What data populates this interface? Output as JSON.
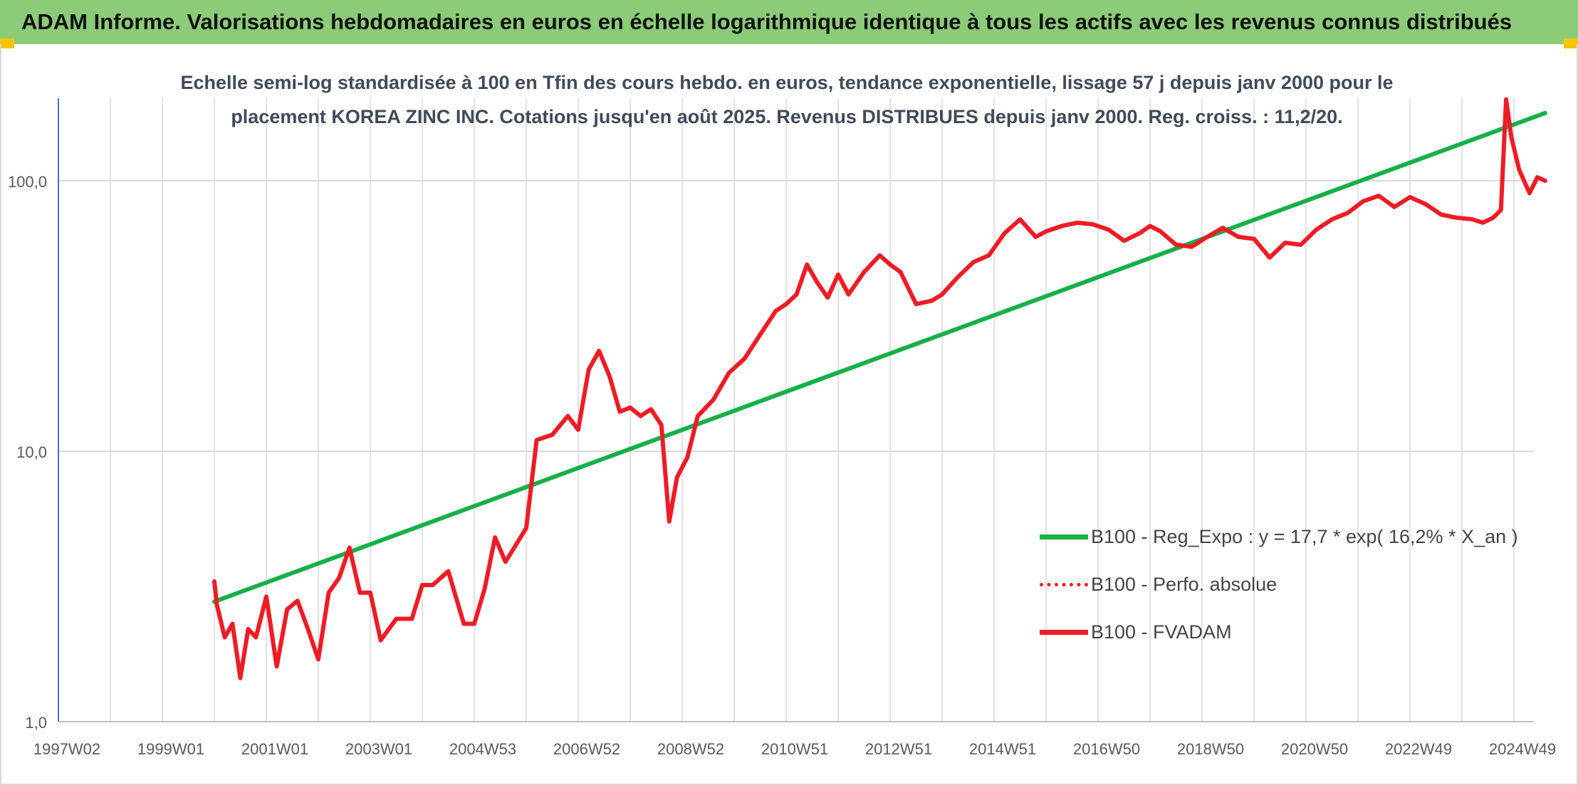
{
  "header": {
    "title": "ADAM Informe. Valorisations hebdomadaires en euros en échelle logarithmique identique à tous les actifs avec les revenus connus distribués"
  },
  "chart_data": {
    "type": "line",
    "title": "Echelle semi-log standardisée à 100 en Tfin des cours hebdo. en euros, tendance exponentielle, lissage 57 j depuis janv 2000 pour le placement KOREA ZINC INC. Cotations jusqu'en août 2025. Revenus DISTRIBUES depuis janv 2000. Reg. croiss. : 11,2/20.",
    "xlabel": "",
    "ylabel": "",
    "y_scale": "log",
    "ylim": [
      1,
      200
    ],
    "y_ticks": [
      "1,0",
      "10,0",
      "100,0"
    ],
    "x_tick_labels": [
      "1997W02",
      "1999W01",
      "2001W01",
      "2003W01",
      "2004W53",
      "2006W52",
      "2008W52",
      "2010W51",
      "2012W51",
      "2014W51",
      "2016W50",
      "2018W50",
      "2020W50",
      "2022W49",
      "2024W49"
    ],
    "grid": true,
    "legend_position": "bottom-right",
    "x_unit": "year",
    "series": [
      {
        "name": "B100 - Reg_Expo : y = 17,7 * exp( 16,2% *  X_an )",
        "color": "#16b04a",
        "style": "solid",
        "x": [
          2000.0,
          2025.6
        ],
        "y": [
          2.78,
          178
        ]
      },
      {
        "name": "B100 - Perfo. absolue",
        "color": "#ee1c24",
        "style": "dotted",
        "x": [],
        "y": []
      },
      {
        "name": "B100 - FVADAM",
        "color": "#ee1c24",
        "style": "solid",
        "x": [
          2000.0,
          2000.05,
          2000.2,
          2000.35,
          2000.5,
          2000.65,
          2000.8,
          2001.0,
          2001.2,
          2001.4,
          2001.6,
          2001.8,
          2002.0,
          2002.2,
          2002.4,
          2002.6,
          2002.8,
          2003.0,
          2003.2,
          2003.5,
          2003.8,
          2004.0,
          2004.2,
          2004.5,
          2004.8,
          2005.0,
          2005.2,
          2005.4,
          2005.6,
          2005.8,
          2006.0,
          2006.2,
          2006.5,
          2006.8,
          2007.0,
          2007.2,
          2007.4,
          2007.6,
          2007.8,
          2008.0,
          2008.2,
          2008.4,
          2008.6,
          2008.75,
          2008.9,
          2009.1,
          2009.3,
          2009.6,
          2009.9,
          2010.2,
          2010.5,
          2010.8,
          2011.0,
          2011.2,
          2011.4,
          2011.6,
          2011.8,
          2012.0,
          2012.2,
          2012.5,
          2012.8,
          2013.0,
          2013.2,
          2013.5,
          2013.8,
          2014.0,
          2014.3,
          2014.6,
          2014.9,
          2015.2,
          2015.5,
          2015.8,
          2016.0,
          2016.3,
          2016.6,
          2016.9,
          2017.2,
          2017.5,
          2017.8,
          2018.0,
          2018.2,
          2018.5,
          2018.8,
          2019.1,
          2019.4,
          2019.7,
          2020.0,
          2020.3,
          2020.6,
          2020.9,
          2021.2,
          2021.5,
          2021.8,
          2022.1,
          2022.4,
          2022.7,
          2023.0,
          2023.3,
          2023.6,
          2023.9,
          2024.2,
          2024.4,
          2024.6,
          2024.75,
          2024.85,
          2024.95,
          2025.1,
          2025.3,
          2025.45,
          2025.6
        ],
        "y": [
          3.3,
          2.7,
          2.05,
          2.3,
          1.45,
          2.2,
          2.05,
          2.9,
          1.6,
          2.6,
          2.8,
          2.2,
          1.7,
          3.0,
          3.4,
          4.4,
          3.0,
          3.0,
          2.0,
          2.4,
          2.4,
          3.2,
          3.2,
          3.6,
          2.3,
          2.3,
          3.1,
          4.8,
          3.9,
          4.5,
          5.2,
          11.0,
          11.5,
          13.5,
          12.0,
          20.0,
          23.5,
          19.0,
          14.0,
          14.5,
          13.5,
          14.3,
          12.5,
          5.5,
          8.0,
          9.5,
          13.5,
          15.5,
          19.5,
          22.0,
          27.0,
          33.0,
          35.0,
          38.0,
          49.0,
          42.0,
          37.0,
          45.0,
          38.0,
          46.0,
          53.0,
          49.0,
          46.0,
          35.0,
          36.0,
          38.0,
          44.0,
          50.0,
          53.0,
          64.0,
          72.0,
          62.0,
          65.0,
          68.0,
          70.0,
          69.0,
          66.0,
          60.0,
          64.0,
          68.0,
          65.0,
          58.0,
          57.0,
          62.0,
          67.0,
          62.0,
          61.0,
          52.0,
          59.0,
          58.0,
          66.0,
          72.0,
          76.0,
          84.0,
          88.0,
          80.0,
          87.0,
          82.0,
          75.0,
          73.0,
          72.0,
          70.0,
          73.0,
          78.0,
          200.0,
          145.0,
          110.0,
          90.0,
          103.0,
          100.0
        ]
      }
    ]
  },
  "colors": {
    "banner": "#8ccb78",
    "trend": "#16b04a",
    "price": "#ee1c24",
    "grid": "#d9d9d9",
    "axis_text": "#595959",
    "title_text": "#3f4a5a"
  }
}
